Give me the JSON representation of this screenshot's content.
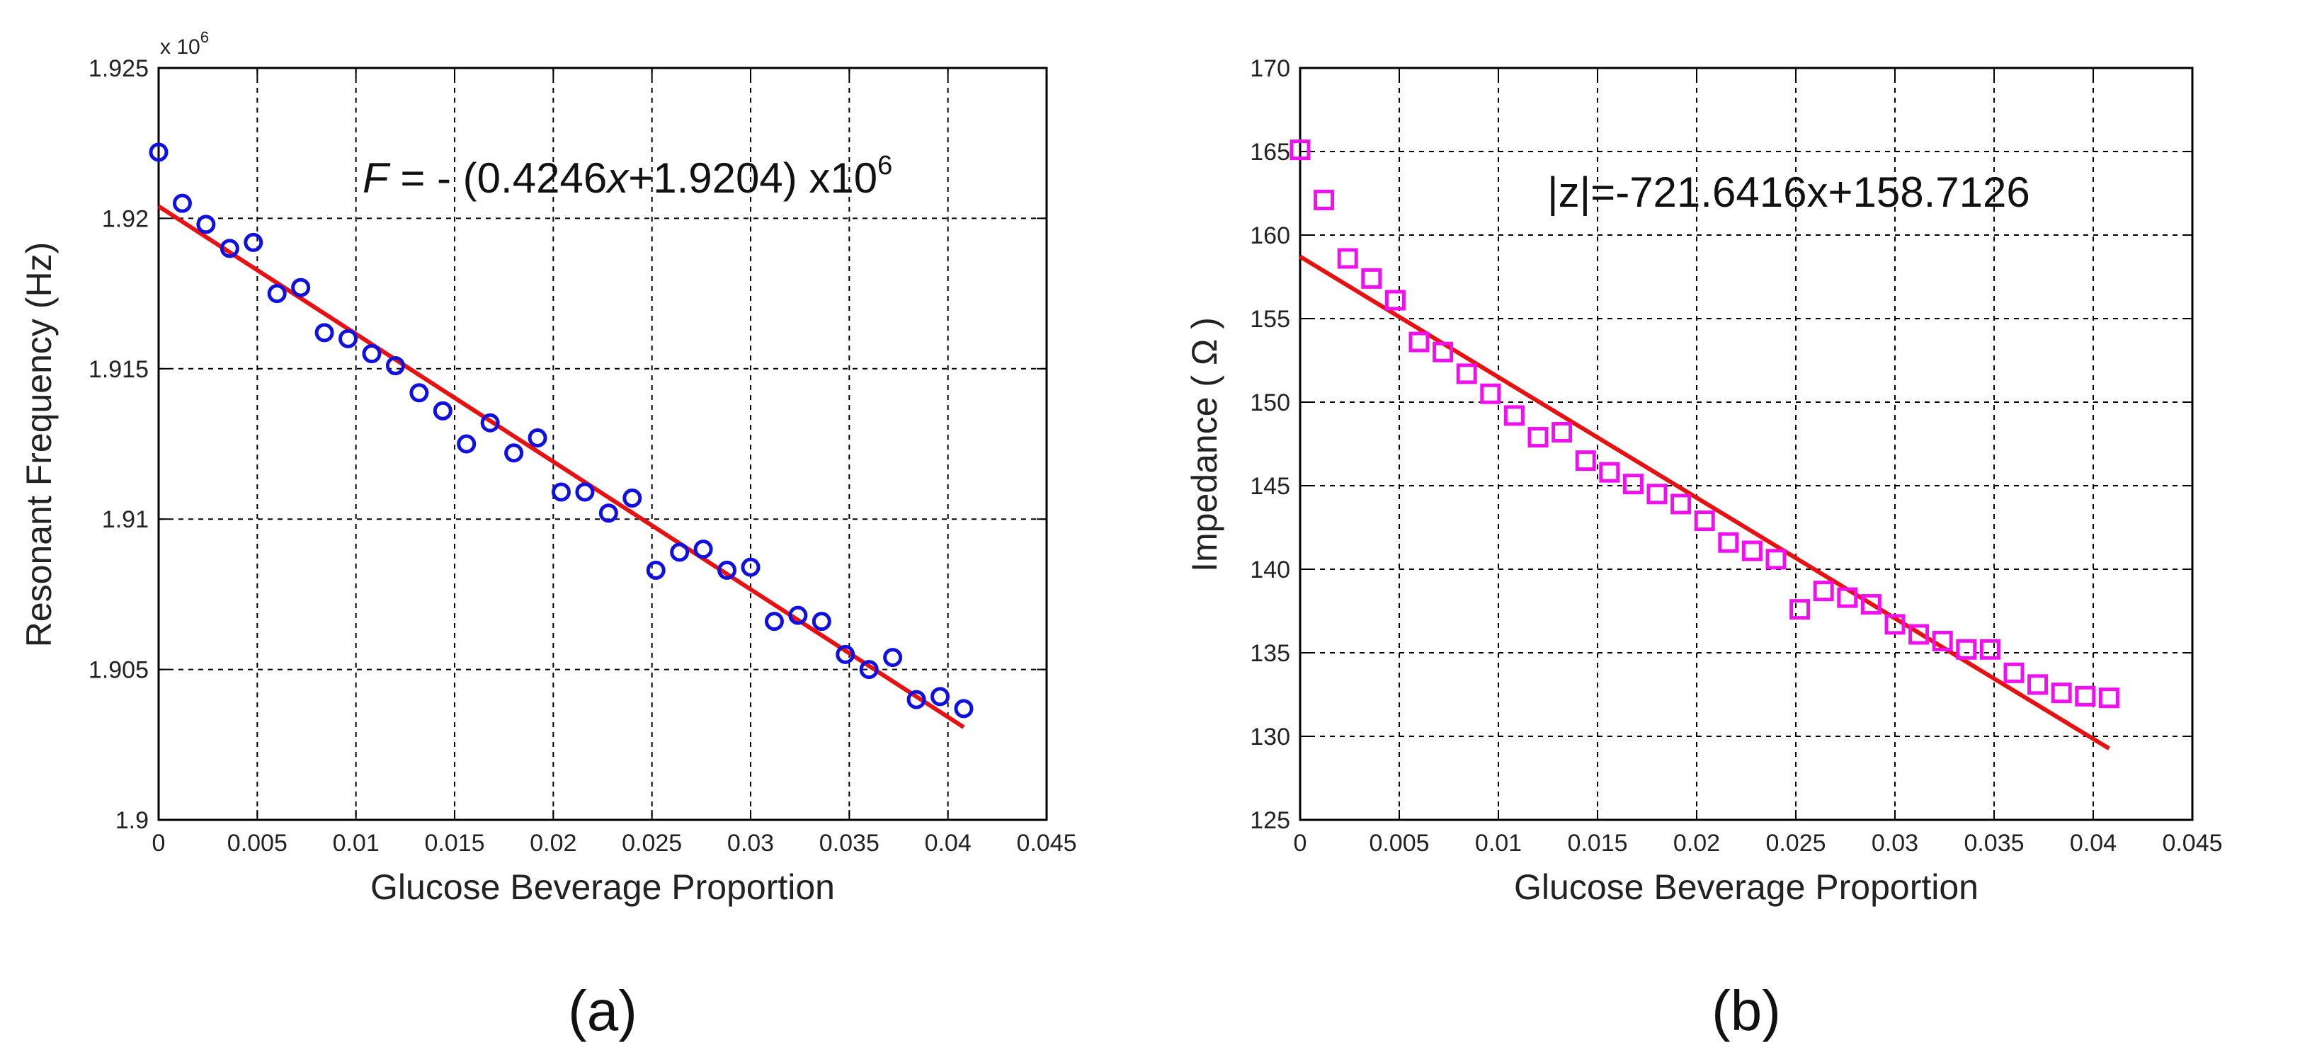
{
  "chart_data": [
    {
      "type": "scatter",
      "panel": "(a)",
      "xlabel": "Glucose Beverage Proportion",
      "ylabel": "Resonant Frequency (Hz)",
      "x_scale_note": "x 10",
      "x_scale_exp": "6",
      "equation": "F = - (0.4246x+1.9204) x10",
      "equation_exp": "6",
      "equation_parts": {
        "var": "F",
        "rest": " = - (0.4246",
        "xvar": "x",
        "tail": "+1.9204) x10"
      },
      "xlim": [
        0,
        0.045
      ],
      "ylim": [
        1.9,
        1.925
      ],
      "xticks": [
        "0",
        "0.005",
        "0.01",
        "0.015",
        "0.02",
        "0.025",
        "0.03",
        "0.035",
        "0.04",
        "0.045"
      ],
      "yticks": [
        "1.9",
        "1.905",
        "1.91",
        "1.915",
        "1.92",
        "1.925"
      ],
      "grid": true,
      "marker_color": "#1010e0",
      "fit_color": "#e81010",
      "series": [
        {
          "name": "measured",
          "x": [
            0,
            0.0012,
            0.0024,
            0.0036,
            0.0048,
            0.006,
            0.0072,
            0.0084,
            0.0096,
            0.0108,
            0.012,
            0.0132,
            0.0144,
            0.0156,
            0.0168,
            0.018,
            0.0192,
            0.0204,
            0.0216,
            0.0228,
            0.024,
            0.0252,
            0.0264,
            0.0276,
            0.0288,
            0.03,
            0.0312,
            0.0324,
            0.0336,
            0.0348,
            0.036,
            0.0372,
            0.0384,
            0.0396,
            0.0408
          ],
          "y": [
            1.9222,
            1.9205,
            1.9198,
            1.919,
            1.9192,
            1.9175,
            1.9177,
            1.9162,
            1.916,
            1.9155,
            1.9151,
            1.9142,
            1.9136,
            1.9125,
            1.9132,
            1.9122,
            1.9127,
            1.9109,
            1.9109,
            1.9102,
            1.9107,
            1.9083,
            1.9089,
            1.909,
            1.9083,
            1.9084,
            1.9066,
            1.9068,
            1.9066,
            1.9055,
            1.905,
            1.9054,
            1.904,
            1.9041,
            1.9037
          ]
        },
        {
          "name": "fit",
          "x": [
            0,
            0.0408
          ],
          "y": [
            1.9204,
            1.90308
          ]
        }
      ]
    },
    {
      "type": "scatter",
      "panel": "(b)",
      "xlabel": "Glucose Beverage Proportion",
      "ylabel": "Impedance ( Ω )",
      "equation": "|z|=-721.6416x+158.7126",
      "xlim": [
        0,
        0.045
      ],
      "ylim": [
        125,
        170
      ],
      "xticks": [
        "0",
        "0.005",
        "0.01",
        "0.015",
        "0.02",
        "0.025",
        "0.03",
        "0.035",
        "0.04",
        "0.045"
      ],
      "yticks": [
        "125",
        "130",
        "135",
        "140",
        "145",
        "150",
        "155",
        "160",
        "165",
        "170"
      ],
      "grid": true,
      "marker_color": "#ee11ee",
      "fit_color": "#e81010",
      "series": [
        {
          "name": "measured",
          "x": [
            0,
            0.0012,
            0.0024,
            0.0036,
            0.0048,
            0.006,
            0.0072,
            0.0084,
            0.0096,
            0.0108,
            0.012,
            0.0132,
            0.0144,
            0.0156,
            0.0168,
            0.018,
            0.0192,
            0.0204,
            0.0216,
            0.0228,
            0.024,
            0.0252,
            0.0264,
            0.0276,
            0.0288,
            0.03,
            0.0312,
            0.0324,
            0.0336,
            0.0348,
            0.036,
            0.0372,
            0.0384,
            0.0396,
            0.0408
          ],
          "y": [
            165.1,
            162.1,
            158.6,
            157.4,
            156.1,
            153.6,
            153.0,
            151.7,
            150.5,
            149.2,
            147.9,
            148.2,
            146.5,
            145.8,
            145.1,
            144.5,
            143.9,
            142.9,
            141.6,
            141.1,
            140.6,
            137.6,
            138.7,
            138.3,
            137.9,
            136.7,
            136.1,
            135.7,
            135.2,
            135.2,
            133.8,
            133.1,
            132.6,
            132.4,
            132.3
          ]
        },
        {
          "name": "fit",
          "x": [
            0,
            0.0408
          ],
          "y": [
            158.7126,
            129.2692
          ]
        }
      ]
    }
  ]
}
